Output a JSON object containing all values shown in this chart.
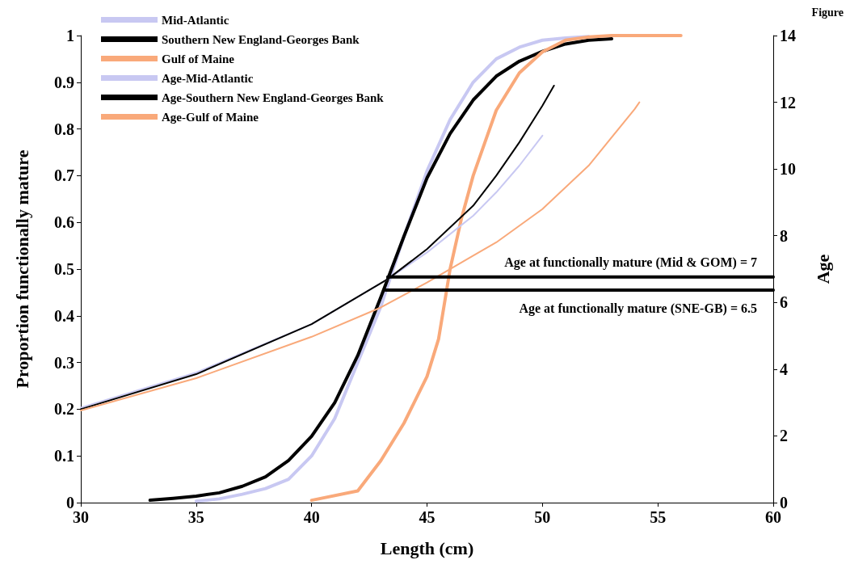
{
  "chart_data": {
    "type": "line",
    "xlabel": "Length (cm)",
    "ylabel": "Proportion functionally mature",
    "y2label": "Age",
    "xlim": [
      30,
      60
    ],
    "xticks": [
      30,
      35,
      40,
      45,
      50,
      55,
      60
    ],
    "ylim": [
      0,
      1
    ],
    "yticks": [
      0,
      0.1,
      0.2,
      0.3,
      0.4,
      0.5,
      0.6,
      0.7,
      0.8,
      0.9,
      1
    ],
    "y2lim": [
      0,
      14
    ],
    "y2ticks": [
      0,
      2,
      4,
      6,
      8,
      10,
      12,
      14
    ],
    "grid": false,
    "legend": "top left",
    "marker": "none",
    "line_style": "solid",
    "annotations": [
      "Figure",
      "Age at functionally mature (Mid & GOM) = 7",
      "Age at functionally mature (SNE-GB) = 6.5"
    ],
    "series": [
      {
        "name": "Mid-Atlantic",
        "color": "#c8c8f2",
        "x": [
          35,
          36,
          37,
          38,
          39,
          40,
          41,
          42,
          43,
          44,
          45,
          46,
          47,
          48,
          49,
          50,
          51,
          52
        ],
        "values": [
          0.003,
          0.008,
          0.018,
          0.03,
          0.05,
          0.1,
          0.18,
          0.3,
          0.42,
          0.57,
          0.71,
          0.82,
          0.9,
          0.95,
          0.975,
          0.99,
          0.995,
          0.998
        ]
      },
      {
        "name": "Southern New England-Georges Bank",
        "color": "#000000",
        "x": [
          33,
          34,
          35,
          36,
          37,
          38,
          39,
          40,
          41,
          42,
          43,
          44,
          45,
          46,
          47,
          48,
          49,
          50,
          51,
          52,
          53
        ],
        "values": [
          0.005,
          0.009,
          0.014,
          0.021,
          0.035,
          0.055,
          0.09,
          0.142,
          0.214,
          0.315,
          0.44,
          0.57,
          0.695,
          0.79,
          0.862,
          0.913,
          0.945,
          0.966,
          0.982,
          0.99,
          0.993
        ]
      },
      {
        "name": "Gulf of Maine",
        "color": "#f9a97a",
        "x": [
          40,
          42,
          43,
          44,
          45,
          45.5,
          46,
          46.5,
          47,
          47.5,
          48,
          49,
          50,
          51,
          52,
          53,
          54,
          55,
          56
        ],
        "values": [
          0.005,
          0.025,
          0.09,
          0.17,
          0.27,
          0.35,
          0.5,
          0.61,
          0.7,
          0.77,
          0.84,
          0.92,
          0.965,
          0.99,
          0.997,
          1,
          1,
          1,
          1
        ]
      },
      {
        "name": "Age-Mid-Atlantic",
        "color": "#c8c8f2",
        "axis": "y2",
        "x": [
          30,
          35,
          40,
          43.3,
          45,
          47,
          48,
          49,
          50
        ],
        "values": [
          2.85,
          3.9,
          5.35,
          6.7,
          7.5,
          8.6,
          9.3,
          10.1,
          11
        ]
      },
      {
        "name": "Age-Southern New England-Georges Bank",
        "color": "#000000",
        "axis": "y2",
        "x": [
          30,
          35,
          40,
          43.3,
          45,
          47,
          48,
          49,
          50,
          50.5
        ],
        "values": [
          2.8,
          3.85,
          5.35,
          6.7,
          7.6,
          8.9,
          9.8,
          10.8,
          11.9,
          12.5
        ]
      },
      {
        "name": "Age-Gulf of Maine",
        "color": "#f9a97a",
        "axis": "y2",
        "x": [
          30,
          35,
          40,
          43,
          45,
          47,
          48,
          50,
          52,
          54,
          54.2
        ],
        "values": [
          2.76,
          3.73,
          4.97,
          5.85,
          6.6,
          7.4,
          7.8,
          8.8,
          10.1,
          11.8,
          12
        ]
      },
      {
        "color": "#000000",
        "x": [
          43.3,
          60
        ],
        "values": [
          0.483,
          0.483
        ]
      },
      {
        "color": "#000000",
        "x": [
          43.2,
          60
        ],
        "values": [
          0.455,
          0.455
        ]
      }
    ]
  }
}
